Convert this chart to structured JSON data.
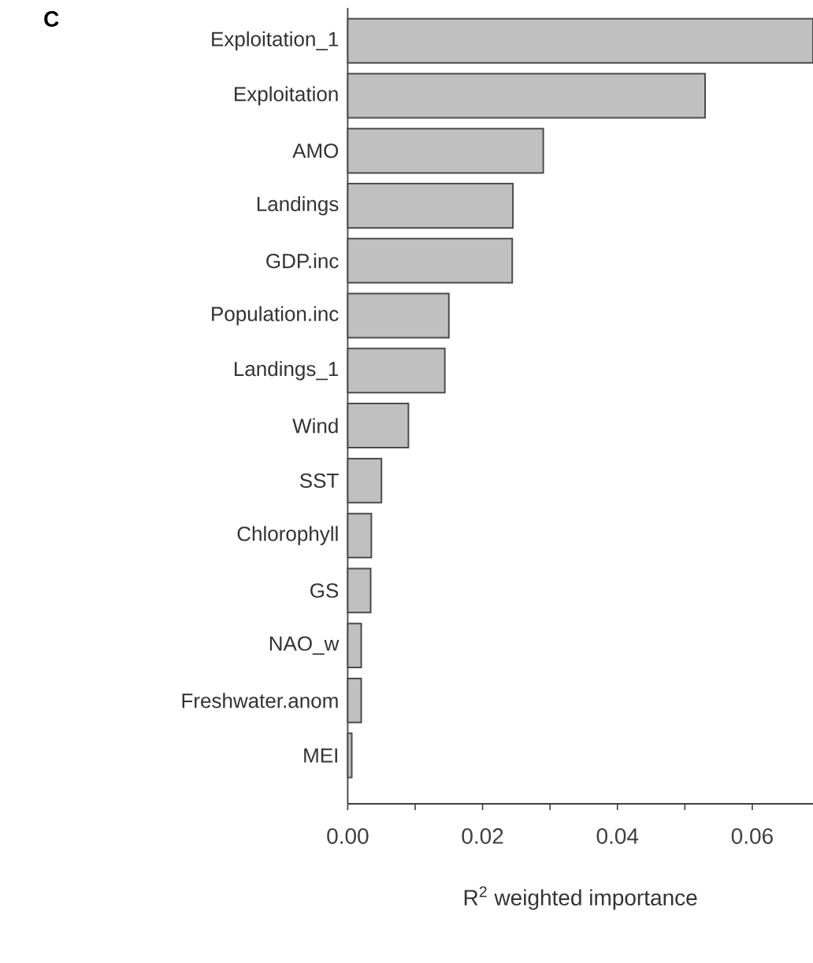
{
  "chart_data": {
    "type": "bar",
    "orientation": "horizontal",
    "title": "C",
    "xlabel": "R$^{2}$ weighted importance",
    "categories": [
      "Exploitation_1",
      "Exploitation",
      "AMO",
      "Landings",
      "GDP.inc",
      "Population.inc",
      "Landings_1",
      "Wind",
      "SST",
      "Chlorophyll",
      "GS",
      "NAO_w",
      "Freshwater.anom",
      "MEI"
    ],
    "values": [
      0.069,
      0.053,
      0.029,
      0.0245,
      0.0244,
      0.015,
      0.0144,
      0.009,
      0.005,
      0.0035,
      0.0034,
      0.002,
      0.002,
      0.0006
    ],
    "color": "#c0c0c0",
    "xlim": [
      0,
      0.069
    ],
    "xticks": [
      {
        "value": 0,
        "label": "0.00"
      },
      {
        "value": 0.01,
        "label": null
      },
      {
        "value": 0.02,
        "label": "0.02"
      },
      {
        "value": 0.03,
        "label": null
      },
      {
        "value": 0.04,
        "label": "0.04"
      },
      {
        "value": 0.05,
        "label": null
      },
      {
        "value": 0.06,
        "label": "0.06"
      }
    ]
  }
}
